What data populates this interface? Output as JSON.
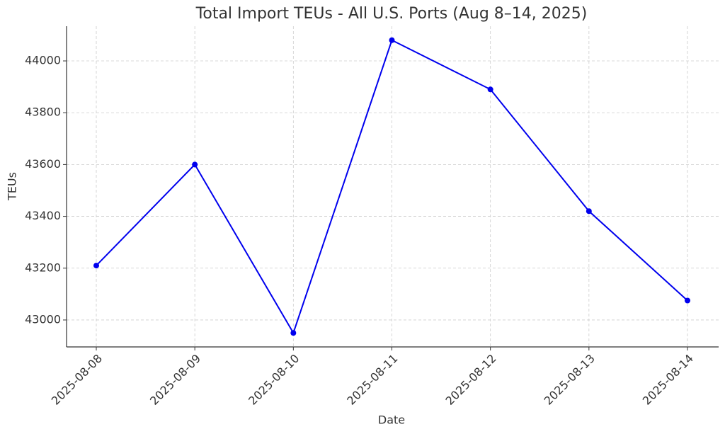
{
  "chart_data": {
    "type": "line",
    "title": "Total Import TEUs - All U.S. Ports (Aug 8–14, 2025)",
    "x_label": "Date",
    "y_label": "TEUs",
    "categories": [
      "2025-08-08",
      "2025-08-09",
      "2025-08-10",
      "2025-08-11",
      "2025-08-12",
      "2025-08-13",
      "2025-08-14"
    ],
    "series": [
      {
        "name": "Total Import TEUs",
        "color": "#0000ee",
        "values": [
          43210,
          43600,
          42950,
          44080,
          43890,
          43420,
          43075
        ]
      }
    ],
    "ylim": [
      42896,
      44134
    ],
    "yticks": [
      43000,
      43200,
      43400,
      43600,
      43800,
      44000
    ],
    "grid": true
  }
}
